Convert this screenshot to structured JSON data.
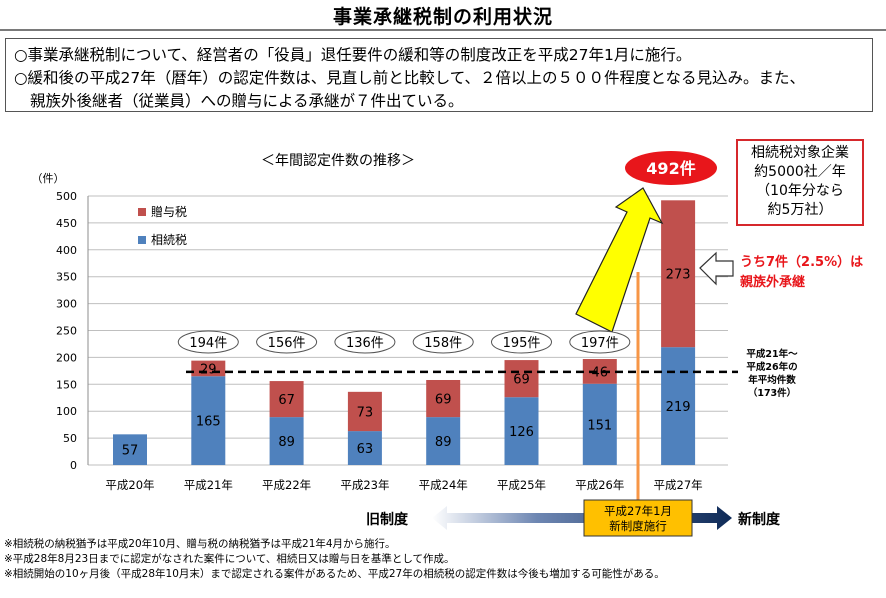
{
  "page_title": "事業承継税制の利用状況",
  "intro": [
    "○事業承継税制について、経営者の「役員」退任要件の緩和等の制度改正を平成27年1月に施行。",
    "○緩和後の平成27年（暦年）の認定件数は、見直し前と比較して、２倍以上の５００件程度となる見込み。また、",
    "親族外後継者（従業員）への贈与による承継が７件出ている。"
  ],
  "callout": {
    "lines": [
      "相続税対象企業",
      "約5000社／年",
      "（10年分なら",
      "約5万社）"
    ]
  },
  "chart_data": {
    "type": "bar",
    "stacked": true,
    "title": "＜年間認定件数の推移＞",
    "y_unit": "（件）",
    "ylim": [
      0,
      500
    ],
    "yticks": [
      0,
      50,
      100,
      150,
      200,
      250,
      300,
      350,
      400,
      450,
      500
    ],
    "grid": true,
    "legend_position": "top-left",
    "categories": [
      "平成20年",
      "平成21年",
      "平成22年",
      "平成23年",
      "平成24年",
      "平成25年",
      "平成26年",
      "平成27年"
    ],
    "series": [
      {
        "name": "相続税",
        "color": "#4f81bd",
        "values": [
          57,
          165,
          89,
          63,
          89,
          126,
          151,
          219
        ]
      },
      {
        "name": "贈与税",
        "color": "#c0504d",
        "values": [
          0,
          29,
          67,
          73,
          69,
          69,
          46,
          273
        ]
      }
    ],
    "totals": [
      "",
      "194件",
      "156件",
      "136件",
      "158件",
      "195件",
      "197件",
      "492件"
    ],
    "average_line": {
      "value": 173,
      "label": [
        "平成21年～",
        "平成26年の",
        "年平均件数",
        "（173件）"
      ]
    },
    "annotations": {
      "highlight_total": "492件",
      "family_note": [
        "うち7件（2.5%）は",
        "親族外承継"
      ],
      "old_system": "旧制度",
      "new_system": "新制度",
      "enforcement": [
        "平成27年1月",
        "新制度施行"
      ]
    }
  },
  "notes": [
    "※相続税の納税猶予は平成20年10月、贈与税の納税猶予は平成21年4月から施行。",
    "※平成28年8月23日までに認定がなされた案件について、相続日又は贈与日を基準として作成。",
    "※相続開始の10ヶ月後（平成28年10月末）まで認定される案件があるため、平成27年の相続税の認定件数は今後も増加する可能性がある。"
  ],
  "colors": {
    "sozoku": "#4f81bd",
    "zoyo": "#c0504d",
    "highlight_red": "#e8161b",
    "arrow_yellow": "#ffff00",
    "orange_line": "#f79646",
    "navy": "#0e2a57",
    "gold_box": "#ffc000"
  }
}
